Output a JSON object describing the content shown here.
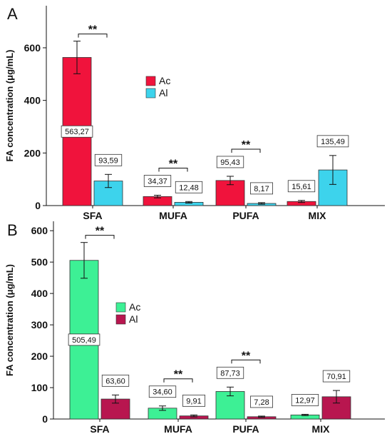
{
  "chart_data": [
    {
      "type": "bar",
      "panel": "A",
      "categories": [
        "SFA",
        "MUFA",
        "PUFA",
        "MIX"
      ],
      "ylabel": "FA concentration (μg/mL)",
      "ylim": [
        0,
        760
      ],
      "yticks": [
        0,
        200,
        400,
        600
      ],
      "legend_position": "upper-middle",
      "series": [
        {
          "name": "Ac",
          "color": "#f0133c",
          "values": [
            563.27,
            34.37,
            95.43,
            15.61
          ],
          "errors": [
            62,
            5,
            16,
            4
          ],
          "labels": [
            "563,27",
            "34,37",
            "95,43",
            "15,61"
          ]
        },
        {
          "name": "Al",
          "color": "#3dd3ec",
          "values": [
            93.59,
            12.48,
            8.17,
            135.49
          ],
          "errors": [
            25,
            3,
            3,
            55
          ],
          "labels": [
            "93,59",
            "12,48",
            "8,17",
            "135,49"
          ]
        }
      ],
      "significance": [
        {
          "category": 0,
          "text": "**"
        },
        {
          "category": 1,
          "text": "**"
        },
        {
          "category": 2,
          "text": "**"
        }
      ]
    },
    {
      "type": "bar",
      "panel": "B",
      "categories": [
        "SFA",
        "MUFA",
        "PUFA",
        "MIX"
      ],
      "ylabel": "FA concentration (μg/mL)",
      "ylim": [
        0,
        630
      ],
      "yticks": [
        0,
        100,
        200,
        300,
        400,
        500,
        600
      ],
      "legend_position": "upper-middle",
      "series": [
        {
          "name": "Ac",
          "color": "#3df095",
          "values": [
            505.49,
            34.6,
            87.73,
            12.97
          ],
          "errors": [
            57,
            7,
            14,
            2
          ],
          "labels": [
            "505,49",
            "34,60",
            "87,73",
            "12,97"
          ]
        },
        {
          "name": "Al",
          "color": "#b8164f",
          "values": [
            63.6,
            9.91,
            7.28,
            70.91
          ],
          "errors": [
            13,
            3,
            2,
            20
          ],
          "labels": [
            "63,60",
            "9,91",
            "7,28",
            "70,91"
          ]
        }
      ],
      "significance": [
        {
          "category": 0,
          "text": "**"
        },
        {
          "category": 1,
          "text": "**"
        },
        {
          "category": 2,
          "text": "**"
        }
      ]
    }
  ]
}
